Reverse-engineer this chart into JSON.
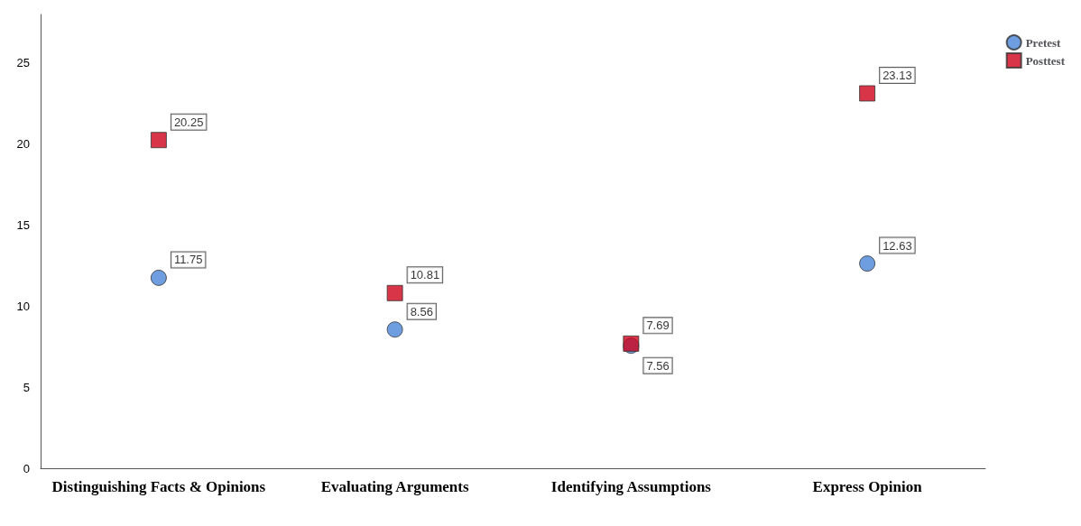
{
  "chart_data": {
    "type": "scatter",
    "categories": [
      "Distinguishing Facts & Opinions",
      "Evaluating Arguments",
      "Identifying Assumptions",
      "Express Opinion"
    ],
    "series": [
      {
        "name": "Pretest",
        "color": "#4a86d8",
        "marker": "circle",
        "values": [
          11.75,
          8.56,
          7.56,
          12.63
        ]
      },
      {
        "name": "Posttest",
        "color": "#d0021b",
        "marker": "square",
        "values": [
          20.25,
          10.81,
          7.69,
          23.13
        ]
      }
    ],
    "ylim": [
      0,
      28
    ],
    "yticks": [
      0,
      5,
      10,
      15,
      20,
      25
    ],
    "grid": false,
    "legend": "top right",
    "data_labels": true
  }
}
